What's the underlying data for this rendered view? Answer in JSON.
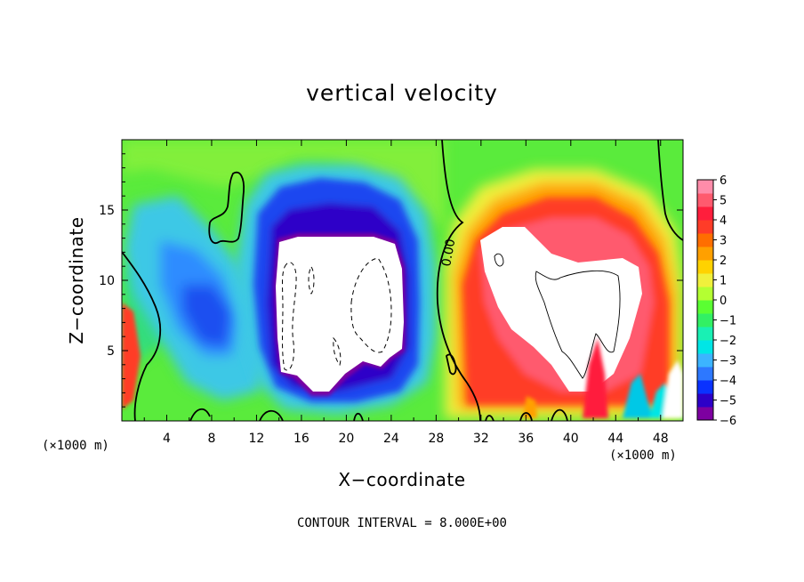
{
  "chart_data": {
    "type": "heatmap",
    "title": "vertical velocity",
    "xlabel": "X−coordinate",
    "ylabel": "Z−coordinate",
    "x_unit": "(×1000 m)",
    "y_unit": "(×1000 m)",
    "xlim": [
      0,
      50
    ],
    "ylim": [
      0,
      20
    ],
    "x_ticks": [
      "4",
      "8",
      "12",
      "16",
      "20",
      "24",
      "28",
      "32",
      "36",
      "40",
      "44",
      "48"
    ],
    "y_ticks": [
      "5",
      "10",
      "15"
    ],
    "colorbar": {
      "tick_labels": [
        "6",
        "5",
        "4",
        "3",
        "2",
        "1",
        "0",
        "−1",
        "−2",
        "−3",
        "−4",
        "−5",
        "−6"
      ],
      "range": [
        -6,
        6
      ],
      "colors": [
        "#7d00a0",
        "#2d00c8",
        "#0a32ff",
        "#2d78ff",
        "#3cb4ff",
        "#00e6e6",
        "#19f0b4",
        "#32f064",
        "#5aff32",
        "#b4ff32",
        "#f0f03c",
        "#ffd200",
        "#ffa000",
        "#ff6e00",
        "#ff3c28",
        "#ff1e3c",
        "#ff5a6e",
        "#ff8caa"
      ]
    },
    "contour_label": "0.00",
    "grid": false,
    "legend": "colorbar-right"
  },
  "footer": {
    "contour_interval": "CONTOUR INTERVAL = 8.000E+00"
  }
}
